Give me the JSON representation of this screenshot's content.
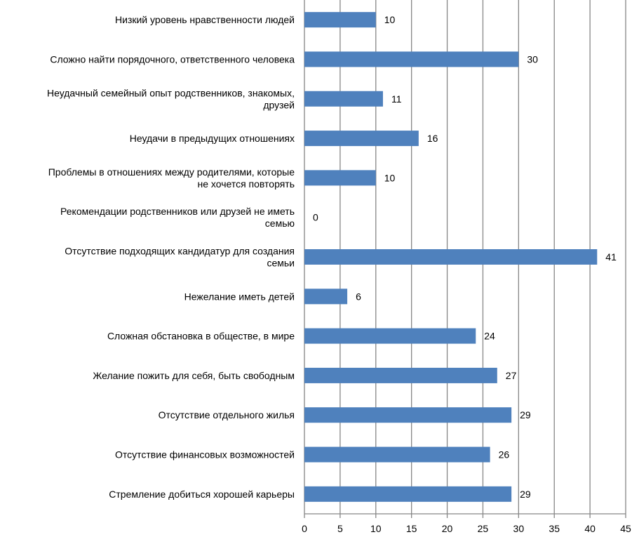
{
  "chart_data": {
    "type": "bar",
    "orientation": "horizontal",
    "title": "",
    "xlabel": "",
    "ylabel": "",
    "xlim": [
      0,
      45
    ],
    "xticks": [
      0,
      5,
      10,
      15,
      20,
      25,
      30,
      35,
      40,
      45
    ],
    "grid": true,
    "bar_color": "#4F81BD",
    "categories": [
      [
        "Низкий уровень нравственности людей"
      ],
      [
        "Сложно найти порядочного, ответственного человека"
      ],
      [
        "Неудачный семейный опыт родственников, знакомых,",
        "друзей"
      ],
      [
        "Неудачи в предыдущих отношениях"
      ],
      [
        "Проблемы в отношениях между родителями, которые",
        "не хочется повторять"
      ],
      [
        "Рекомендации родственников или друзей не иметь",
        "семью"
      ],
      [
        "Отсутствие подходящих кандидатур для создания",
        "семьи"
      ],
      [
        "Нежелание иметь детей"
      ],
      [
        "Сложная обстановка в обществе, в мире"
      ],
      [
        "Желание пожить для себя, быть свободным"
      ],
      [
        "Отсутствие отдельного жилья"
      ],
      [
        "Отсутствие финансовых возможностей"
      ],
      [
        "Стремление добиться хорошей карьеры"
      ]
    ],
    "values": [
      10,
      30,
      11,
      16,
      10,
      0,
      41,
      6,
      24,
      27,
      29,
      26,
      29
    ]
  }
}
